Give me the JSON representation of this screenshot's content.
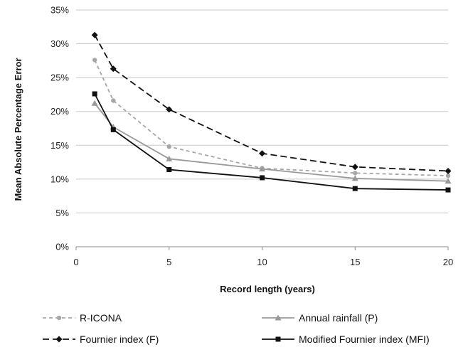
{
  "chart_data": {
    "type": "line",
    "xlabel": "Record length (years)",
    "ylabel": "Mean Absolute Percentage Error",
    "xlim": [
      0,
      20
    ],
    "ylim": [
      0,
      35
    ],
    "x_ticks": [
      "0",
      "5",
      "10",
      "15",
      "20"
    ],
    "y_ticks": [
      "0%",
      "5%",
      "10%",
      "15%",
      "20%",
      "25%",
      "30%",
      "35%"
    ],
    "grid": "horizontal",
    "legend_position": "bottom",
    "x": [
      1,
      2,
      5,
      10,
      15,
      20
    ],
    "series": [
      {
        "name": "R-ICONA",
        "values": [
          27.6,
          21.6,
          14.8,
          11.6,
          10.9,
          10.5
        ],
        "color": "#a6a6a6",
        "dash": "dashed",
        "marker": "circle"
      },
      {
        "name": "Annual rainfall (P)",
        "values": [
          21.2,
          17.7,
          13.0,
          11.5,
          10.1,
          9.7
        ],
        "color": "#999999",
        "dash": "solid",
        "marker": "triangle"
      },
      {
        "name": "Fournier index (F)",
        "values": [
          31.3,
          26.3,
          20.3,
          13.8,
          11.8,
          11.2
        ],
        "color": "#111111",
        "dash": "longdash",
        "marker": "diamond"
      },
      {
        "name": "Modified Fournier index (MFI)",
        "values": [
          22.6,
          17.3,
          11.4,
          10.2,
          8.6,
          8.4
        ],
        "color": "#111111",
        "dash": "solid",
        "marker": "square"
      }
    ]
  }
}
